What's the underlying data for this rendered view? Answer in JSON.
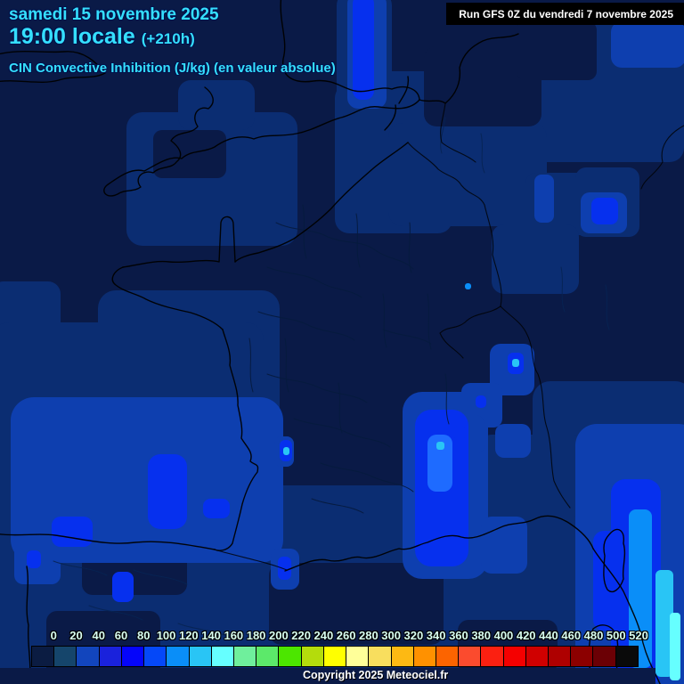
{
  "header": {
    "date_line": "samedi 15 novembre 2025",
    "time_line": "19:00 locale",
    "forecast_offset": "(+210h)",
    "param_title": "CIN Convective Inhibition (J/kg) (en valeur absolue)",
    "run_info": "Run GFS 0Z du vendredi 7 novembre 2025"
  },
  "footer": {
    "copyright": "Copyright 2025 Meteociel.fr"
  },
  "palette": {
    "dark": "#0A1A47",
    "base": "#0B2D72",
    "royal": "#0E3FAF",
    "bright": "#0630EE",
    "core": "#1E6BFF",
    "sky": "#0A8EF8",
    "lsky": "#29C5F5",
    "cyan": "#66FFFF",
    "header_text": "#35DFFF",
    "tick_text": "#D9FFF2"
  },
  "chart_data": {
    "type": "heatmap",
    "title": "CIN Convective Inhibition (J/kg) (en valeur absolue)",
    "unit": "J/kg",
    "model_run": "Run GFS 0Z du vendredi 7 novembre 2025",
    "valid_time": "samedi 15 novembre 2025 19:00 locale (+210h)",
    "legend_position": "bottom",
    "legend": {
      "tick_labels": [
        "0",
        "20",
        "40",
        "60",
        "80",
        "100",
        "120",
        "140",
        "160",
        "180",
        "200",
        "220",
        "240",
        "260",
        "280",
        "300",
        "320",
        "340",
        "360",
        "380",
        "400",
        "420",
        "440",
        "460",
        "480",
        "500",
        "520"
      ],
      "cell_colors": [
        "#0B1C42",
        "#15456B",
        "#1245BD",
        "#1A22DC",
        "#0505FA",
        "#0548F8",
        "#0A8EF8",
        "#29C5F5",
        "#66FFFF",
        "#6FEF9C",
        "#5CE96A",
        "#4CE600",
        "#B4DC0C",
        "#FFFF00",
        "#FFFF99",
        "#F8DE5E",
        "#FDB913",
        "#FF9100",
        "#FC6400",
        "#FB4B2E",
        "#FB2011",
        "#F50000",
        "#D00000",
        "#AE0000",
        "#8C0000",
        "#6B0005",
        "#0A0A0A"
      ]
    }
  }
}
